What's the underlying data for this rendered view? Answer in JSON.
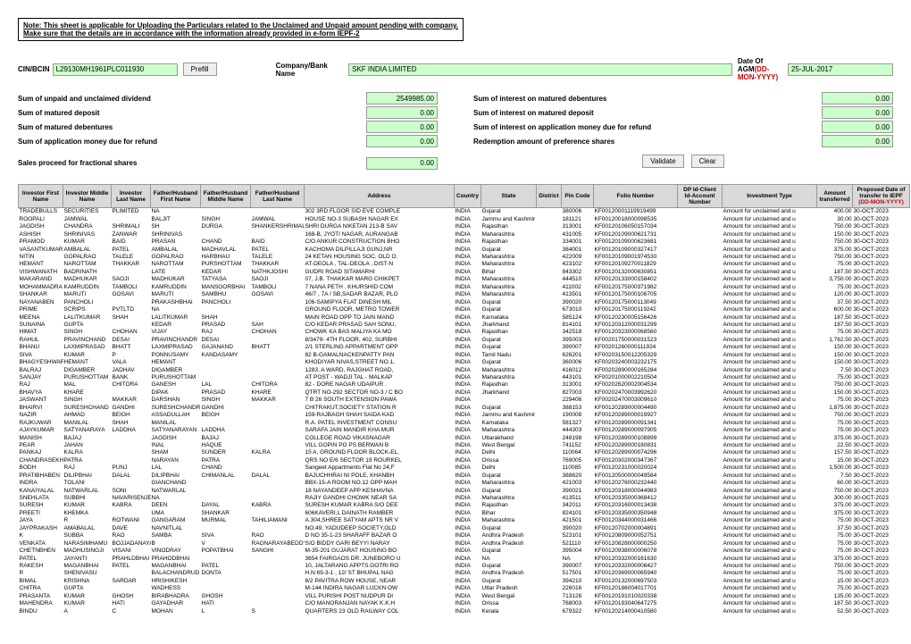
{
  "note": {
    "line1": "Note: This sheet is applicable for Uploading the Particulars related to the Unclaimed and Unpaid amount pending with company.",
    "line2": "Make sure that the details are in accordance with the information already provided in e-form IEPF-2"
  },
  "labels": {
    "cin": "CIN/BCIN",
    "prefill": "Prefill",
    "company": "Company/Bank Name",
    "agm": "Date Of AGM(DD-MON-YYYY)",
    "sum_dividend": "Sum of unpaid and unclaimed dividend",
    "sum_interest_debentures": "Sum of interest on matured debentures",
    "sum_matured_deposit": "Sum of matured deposit",
    "sum_interest_deposit": "Sum of interest on matured deposit",
    "sum_matured_debentures": "Sum of matured debentures",
    "sum_interest_refund": "Sum of interest on application money due for refund",
    "sum_refund": "Sum of application money due for refund",
    "redemption": "Redemption amount of preference shares",
    "sales_proceed": "Sales proceed for fractional shares",
    "validate": "Validate",
    "clear": "Clear"
  },
  "values": {
    "cin": "L29130MH1961PLC011930",
    "company": "SKF INDIA LIMITED",
    "agm": "25-JUL-2017",
    "sum_dividend": "2549985.00",
    "sum_interest_debentures": "0.00",
    "sum_matured_deposit": "0.00",
    "sum_interest_deposit": "0.00",
    "sum_matured_debentures": "0.00",
    "sum_interest_refund": "0.00",
    "sum_refund": "0.00",
    "redemption": "0.00",
    "sales_proceed": "0.00"
  },
  "columns": [
    "Investor First Name",
    "Investor Middle Name",
    "Investor Last Name",
    "Father/Husband First Name",
    "Father/Husband Middle Name",
    "Father/Husband Last Name",
    "Address",
    "Country",
    "State",
    "District",
    "Pin Code",
    "Folio Number",
    "DP Id-Client Id-Account Number",
    "Investment Type",
    "Amount transferred",
    "Proposed Date of transfer to IEPF (DD-MON-YYYY)"
  ],
  "colWidths": [
    "50px",
    "54px",
    "44px",
    "56px",
    "56px",
    "60px",
    "168px",
    "30px",
    "62px",
    "28px",
    "36px",
    "94px",
    "50px",
    "106px",
    "40px",
    "64px"
  ],
  "rows": [
    [
      "TRADEBULLS",
      "SECURITIES",
      "PLIMITED",
      "NA",
      "",
      "",
      "302 3RD FLOOR SID EVE COMPLE",
      "INDIA",
      "Gujarat",
      "",
      "380006",
      "KF00120001119919499",
      "",
      "Amount for unclaimed and u",
      "400.00",
      "30-OCT-2023"
    ],
    [
      "ROOPALI",
      "JAMWAL",
      "",
      "BALJIT",
      "SINGH",
      "JAMWAL",
      "HOUSE NO-3 SUBASH NAGAR EX",
      "INDIA",
      "Jammu and Kashmir",
      "",
      "181121",
      "KF00120018000098535",
      "",
      "Amount for unclaimed and u",
      "30.00",
      "30-OCT-2023"
    ],
    [
      "JAGDISH",
      "CHANDRA",
      "SHRIMALI",
      "SH",
      "DURGA",
      "SHANKERSHRIMALI",
      "SHRI DURGA NIKETAN 213-B SAV",
      "INDIA",
      "Rajasthan",
      "",
      "313001",
      "KF00120106050157034",
      "",
      "Amount for unclaimed and u",
      "750.00",
      "30-OCT-2023"
    ],
    [
      "ASHISH",
      "SHRINIVAS",
      "ZANWAR",
      "SHRINIVAS",
      "",
      "",
      "168-B, JYOTI NAGAR, AURANGAB",
      "INDIA",
      "Maharashtra",
      "",
      "431005",
      "KF00120109000621731",
      "",
      "Amount for unclaimed and u",
      "150.00",
      "30-OCT-2023"
    ],
    [
      "PRAMOD",
      "KUMAR",
      "BAID",
      "PRASAN",
      "CHAND",
      "BAID",
      "C/O ANKUR CONSTRUCTION BHO",
      "INDIA",
      "Rajasthan",
      "",
      "334001",
      "KF00120109000623681",
      "",
      "Amount for unclaimed and u",
      "750.00",
      "30-OCT-2023"
    ],
    [
      "VASANTKUMAR",
      "AMBALAL",
      "PATEL",
      "AMBALAL",
      "MADHAVLAL",
      "PATEL",
      "KACHOMA DILPILLAJI GUNJ,NR",
      "INDIA",
      "Gujarat",
      "",
      "384001",
      "KF00120109000327417",
      "",
      "Amount for unclaimed and u",
      "375.00",
      "30-OCT-2023"
    ],
    [
      "NITIN",
      "GOPALRAO",
      "TALELE",
      "GOPALRAO",
      "HARBHAU",
      "TALELE",
      "24 KETAN HOUSING SOC. OLD O.",
      "INDIA",
      "Maharashtra",
      "",
      "422009",
      "KF00120109001974530",
      "",
      "Amount for unclaimed and u",
      "750.00",
      "30-OCT-2023"
    ],
    [
      "HEMANT",
      "NAROTTAM",
      "THAKKAR",
      "NAROTTAM",
      "PURSHOTTAM",
      "THAKKAR",
      "AT-DEOLA , TAL-DEOLA , DIST-N",
      "INDIA",
      "Maharashtra",
      "",
      "423102",
      "KF00120109270011829",
      "",
      "Amount for unclaimed and u",
      "75.00",
      "30-OCT-2023"
    ],
    [
      "VISHWANATH",
      "BADRINATH",
      "",
      "LATE",
      "KEDAR",
      "NATHKJOSHI",
      "GUDRI ROAD SITAMARHI",
      "INDIA",
      "Bihar",
      "",
      "843302",
      "KF00120132000630851",
      "",
      "Amount for unclaimed and u",
      "187.50",
      "30-OCT-2023"
    ],
    [
      "MAKARAND",
      "MADHUKAR",
      "SAOJI",
      "MADHUKAR",
      "TATYASA",
      "SAOJI",
      "07, J.B. THAKKAR MARG CHIKPET",
      "INDIA",
      "Maharashtra",
      "",
      "444510",
      "KF00120133000158402",
      "",
      "Amount for unclaimed and u",
      "3,750.00",
      "30-OCT-2023"
    ],
    [
      "MOHAMMADRA",
      "KAMRUDDIN",
      "TAMBOLI",
      "KAMRUDDIN",
      "MANSOORBHAI",
      "TAMBOLI",
      "7 NANA PETH . KHURSHID COM",
      "INDIA",
      "Maharashtra",
      "",
      "411002",
      "KF00120175000371982",
      "",
      "Amount for unclaimed and u",
      "75.00",
      "30-OCT-2023"
    ],
    [
      "SHANKAR",
      "MARUTI",
      "GOSAVI",
      "MARUTI",
      "SAMBHU",
      "GOSAVI",
      "46/7 , 7A / SB,SADAR BAZAR, PLO",
      "INDIA",
      "Maharashtra",
      "",
      "413501",
      "KF00120175000106705",
      "",
      "Amount for unclaimed and u",
      "120.00",
      "30-OCT-2023"
    ],
    [
      "NAYANABEN",
      "PANCHOLI",
      "",
      "PRAKASHBHAI",
      "PANCHOLI",
      "",
      "106-SAMIPYA FLAT DINESH MIL",
      "INDIA",
      "Gujarat",
      "",
      "390020",
      "KF00120175000113049",
      "",
      "Amount for unclaimed and u",
      "37.50",
      "30-OCT-2023"
    ],
    [
      "PRIME",
      "SCRIPS",
      "PVTLTD",
      "NA",
      "",
      "",
      "GROUND FLOOR, METRO TOWER",
      "INDIA",
      "Gujarat",
      "",
      "673010",
      "KF00120175000119242",
      "",
      "Amount for unclaimed and u",
      "600.00",
      "30-OCT-2023"
    ],
    [
      "MEENA",
      "LALITKUMAR",
      "SHAH",
      "LALITKUMAR",
      "SHAH",
      "",
      "MAIN ROAD OPP TO JAIN MAND",
      "INDIA",
      "Karnataka",
      "",
      "585124",
      "KF00120230005156426",
      "",
      "Amount for unclaimed and u",
      "187.50",
      "30-OCT-2023"
    ],
    [
      "SUNAINA",
      "GUPTA",
      "",
      "KEDAR",
      "PRASAD",
      "SAH",
      "C/O KEDAR PRASAD SAH SONU,",
      "INDIA",
      "Jharkhand",
      "",
      "814101",
      "KF00120312000031299",
      "",
      "Amount for unclaimed and u",
      "187.50",
      "30-OCT-2023"
    ],
    [
      "HIMAT",
      "SINGH",
      "CHOHAN",
      "VIJAY",
      "RAJ",
      "CHOHAN",
      "CHOWK KA BAS MALIYA KA MO",
      "INDIA",
      "Rajasthan",
      "",
      "342518",
      "KF00120323000068560",
      "",
      "Amount for unclaimed and u",
      "75.00",
      "30-OCT-2023"
    ],
    [
      "RAHUL",
      "PRAVINCHAND",
      "DESAI",
      "PRAVINCHANDR",
      "DESAI",
      "",
      "8/3479- 4TH FLOOR, 402, SURBHI",
      "INDIA",
      "Gujarat",
      "",
      "395003",
      "KF00201750000031523",
      "",
      "Amount for unclaimed and u",
      "1,762.50",
      "30-OCT-2023"
    ],
    [
      "BHANU",
      "LAXMIPRASAD",
      "BHATT",
      "LAXMIPRASAD",
      "GAJANAND",
      "BHATT",
      "2/1 STERLING APPARTMENT OPP",
      "INDIA",
      "Gujarat",
      "",
      "390007",
      "KF00201260000111924",
      "",
      "Amount for unclaimed and u",
      "150.00",
      "30-OCT-2023"
    ],
    [
      "SIVA",
      "KUMAR",
      "P",
      "PONNUSAMY",
      "KANDASAMY",
      "",
      "82 B-GAMALNACKENPATTY PAN",
      "INDIA",
      "Tamil Nadu",
      "",
      "626201",
      "KF00203150012205329",
      "",
      "Amount for unclaimed and u",
      "150.00",
      "30-OCT-2023"
    ],
    [
      "BHAGYESHWAR",
      "HEMANT",
      "VALA",
      "HEMANT",
      "",
      "",
      "KHODIYAR NIVAS,STREET NO.1,",
      "INDIA",
      "Gujarat",
      "",
      "360006",
      "KF00203240003232175",
      "",
      "Amount for unclaimed and u",
      "150.00",
      "30-OCT-2023"
    ],
    [
      "BALRAJ",
      "DIGAMBER",
      "JADHAV",
      "DIGAMBER",
      "",
      "",
      "1283, A WARD, RAJGHAT ROAD,",
      "INDIA",
      "Maharashtra",
      "",
      "416012",
      "KF00202890000165284",
      "",
      "Amount for unclaimed and u",
      "7.50",
      "30-OCT-2023"
    ],
    [
      "SANJAY",
      "PURUSHOTTAM",
      "BANK",
      "PURUSHOTTAM",
      "",
      "",
      "AT POST - WADJI TAL - MALKAP",
      "INDIA",
      "Maharashtra",
      "",
      "443101",
      "KF00201000002210504",
      "",
      "Amount for unclaimed and u",
      "75.00",
      "30-OCT-2023"
    ],
    [
      "RAJ",
      "MAL",
      "CHITORA",
      "GANESH",
      "LAL",
      "CHITORA",
      "82 - DORE NAGAR UDAIPUR .",
      "INDIA",
      "Rajasthan",
      "",
      "313001",
      "KF00202620002004534",
      "",
      "Amount for unclaimed and u",
      "750.00",
      "30-OCT-2023"
    ],
    [
      "BHAVYA",
      "KHARE",
      "",
      "DIPAK",
      "PRASAD",
      "KHARE",
      "QTRT NO-292 SECTOR NO-3 / C BO",
      "INDIA",
      "Jharkhand",
      "",
      "827003",
      "KF00202470003992620",
      "",
      "Amount for unclaimed and u",
      "150.00",
      "30-OCT-2023"
    ],
    [
      "JASWANT",
      "SINGH",
      "MAKKAR",
      "DARSHAN",
      "SINGH",
      "MAKKAR",
      "7 B 26 SOUTH EXTENSION PAWA",
      "INDIA",
      "",
      "",
      "229406",
      "KF00202470003009610",
      "",
      "Amount for unclaimed and u",
      "75.00",
      "30-OCT-2023"
    ],
    [
      "BHAIRVI",
      "SURESHCHAND",
      "GANDHI",
      "SURESHCHANDR",
      "GANDHI",
      "",
      "CHITRAKUT,SOCIETY STATION R",
      "INDIA",
      "Gujarat",
      "",
      "388153",
      "KF00120289000004490",
      "",
      "Amount for unclaimed and u",
      "1,875.00",
      "30-OCT-2023"
    ],
    [
      "NAZIR",
      "AHMAD",
      "BEIGH",
      "ASSADULLAH",
      "BEIGH",
      "",
      "159-RAJBAGH SHAH SAIDA KAD",
      "INDIA",
      "Jammu and Kashmir",
      "",
      "190008",
      "KF00120289000019927",
      "",
      "Amount for unclaimed and u",
      "750.00",
      "30-OCT-2023"
    ],
    [
      "RAJKUWAR",
      "MANILAL",
      "SHAH",
      "MANILAL",
      "",
      "",
      "R.A. PATEL INVESTMENT CONSU",
      "INDIA",
      "Karnataka",
      "",
      "581327",
      "KF00120289000091341",
      "",
      "Amount for unclaimed and u",
      "75.00",
      "30-OCT-2023"
    ],
    [
      "AJAYKUMAR",
      "SATYANARAYA",
      "LADDHA",
      "SATYANARAYAN",
      "LADDHA",
      "",
      "SARAFA JAIN MANDIR KHA MUR",
      "INDIA",
      "Maharashtra",
      "",
      "444303",
      "KF00120289000097905",
      "",
      "Amount for unclaimed and u",
      "75.00",
      "30-OCT-2023"
    ],
    [
      "MANISH",
      "BAJAJ",
      "",
      "JAGDISH",
      "BAJAJ",
      "",
      "COLLEGE ROAD VIKASNAGAR",
      "INDIA",
      "Uttarakhand",
      "",
      "248198",
      "KF00120289000108899",
      "",
      "Amount for unclaimed and u",
      "375.00",
      "30-OCT-2023"
    ],
    [
      "PEAR",
      "JAHAN",
      "",
      "INAL",
      "HAQUE",
      "",
      "VILL GOPIN PO PS BERWAN B",
      "INDIA",
      "West Bengal",
      "",
      "741152",
      "KF00120289000180831",
      "",
      "Amount for unclaimed and u",
      "22.50",
      "30-OCT-2023"
    ],
    [
      "PANKAJ",
      "KALRA",
      "",
      "SHAM",
      "SUNDER",
      "KALRA",
      "15 A, GROUND FLOOR BLOCK-EL,",
      "INDIA",
      "Delhi",
      "",
      "110064",
      "KF00120289000074296",
      "",
      "Amount for unclaimed and u",
      "157.50",
      "30-OCT-2023"
    ],
    [
      "CHANDRASEKH",
      "PATRA",
      "",
      "NARAYAN",
      "PATRA",
      "",
      "QRS NO E/6 SECTOR 19 ROURKEL",
      "INDIA",
      "Orissa",
      "",
      "769005",
      "KF00120302000347367",
      "",
      "Amount for unclaimed and u",
      "15.00",
      "30-OCT-2023"
    ],
    [
      "BODH",
      "RAJ",
      "PUNJ",
      "LAL",
      "CHAND",
      "",
      "Sangeet Appartments Flat No 24,F",
      "INDIA",
      "Delhi",
      "",
      "110085",
      "KF00120231000020024",
      "",
      "Amount for unclaimed and u",
      "1,500.00",
      "30-OCT-2023"
    ],
    [
      "PRATIBHABEN",
      "DILIPBHAI",
      "DALAL",
      "DILIPBHAI",
      "CHIMANLAL",
      "DALAL",
      "BAJUCHHRAI NI POLE, KHANBH",
      "INDIA",
      "Gujarat",
      "",
      "388620",
      "KF00120500000049584",
      "",
      "Amount for unclaimed and u",
      "7.50",
      "30-OCT-2023"
    ],
    [
      "INDRA",
      "TOLANI",
      "",
      "GIANCHAND",
      "",
      "",
      "BBX-15-A ROOM NO.12 OPP MAH",
      "INDIA",
      "Maharashtra",
      "",
      "421003",
      "KF00120276000232440",
      "",
      "Amount for unclaimed and u",
      "60.00",
      "30-OCT-2023"
    ],
    [
      "KANAIYALAL",
      "NATWARLAL",
      "SONI",
      "NATWARLAL",
      "",
      "",
      "18 NAYANDEEP APP KESHAVNA",
      "INDIA",
      "Gujarat",
      "",
      "390021",
      "KF00120318000044983",
      "",
      "Amount for unclaimed and u",
      "750.00",
      "30-OCT-2023"
    ],
    [
      "SNEHLATA",
      "SUBBHI",
      "NAVARISENJE",
      "NA",
      "",
      "",
      "RAJIY GANDHI CHOWK NEAR SA",
      "INDIA",
      "Maharashtra",
      "",
      "413511",
      "KF00120335000368412",
      "",
      "Amount for unclaimed and u",
      "300.00",
      "30-OCT-2023"
    ],
    [
      "SURESH",
      "KUMAR",
      "KABRA",
      "DEEN",
      "DAYAL",
      "KABRA",
      "SURESH KUMAR KABRA S/O DEE",
      "INDIA",
      "Rajasthan",
      "",
      "342011",
      "KF00120316000013438",
      "",
      "Amount for unclaimed and u",
      "375.00",
      "30-OCT-2023"
    ],
    [
      "PREETI",
      "KHEMKA",
      "",
      "UMA",
      "SHANKAR",
      "",
      "606KAVERI,L DAINATH RAMBER",
      "INDIA",
      "Bihar",
      "",
      "824101",
      "KF00120335000350948",
      "",
      "Amount for unclaimed and u",
      "375.00",
      "30-OCT-2023"
    ],
    [
      "JAYA",
      "R",
      "ROTWANI",
      "GANGARAM",
      "MURMAL",
      "TAHILIAMANI",
      "A.304,SHREE SATYAM APTS NR V",
      "INDIA",
      "Maharashtra",
      "",
      "421501",
      "KF00120344000031466",
      "",
      "Amount for unclaimed and u",
      "75.00",
      "30-OCT-2023"
    ],
    [
      "JAYPRAKASH",
      "AMABALAL",
      "DAVE",
      "NAVNITLAL",
      "",
      "",
      "NO.49, YADUDEEP SOCIETY,OLD",
      "INDIA",
      "Gujarat",
      "",
      "390020",
      "KF00120702000004891",
      "",
      "Amount for unclaimed and u",
      "37.50",
      "30-OCT-2023"
    ],
    [
      "K",
      "SUBBA",
      "RAO",
      "SAMBA",
      "SIVA",
      "RAO",
      "D NO 35-1-23 SHARAFF BAZAR O",
      "INDIA",
      "Andhra Pradesh",
      "",
      "523101",
      "KF00120809000052751",
      "",
      "Amount for unclaimed and u",
      "75.00",
      "30-OCT-2023"
    ],
    [
      "VENKATA",
      "NARASIMHAMU",
      "BOJJADANAYA",
      "B",
      "V",
      "RAONARAYABEDDY",
      "S/O BIDDY GARI BEYYI NARAY",
      "INDIA",
      "Andhra Pradesh",
      "",
      "521110",
      "KF00120828000000250",
      "",
      "Amount for unclaimed and u",
      "75.00",
      "30-OCT-2023"
    ],
    [
      "CHETNBHEN",
      "MADHUSINGJI",
      "VISANI",
      "VINODRAY",
      "POPATBHAI",
      "SANGHI",
      "M-35-201 GUJARAT HOUSING BO",
      "INDIA",
      "Gujarat",
      "",
      "395004",
      "KF00120938000006078",
      "",
      "Amount for unclaimed and u",
      "75.00",
      "30-OCT-2023"
    ],
    [
      "PATEL",
      "JAYANTI",
      "PRAHLDBHAI",
      "PRAHODBHAI",
      "",
      "",
      "3654 FAIRGAOS DR. JUNEBORO U",
      "INDIA",
      "NA",
      "",
      "NA",
      "KF00120332000161630",
      "",
      "Amount for unclaimed and u",
      "375.00",
      "30-OCT-2023"
    ],
    [
      "RAKESH",
      "MAGANBHAI",
      "PATEL",
      "MAGANBHAI",
      "PATEL",
      "",
      "10, JALTARANG APPTS.GOTRI RO",
      "INDIA",
      "Gujarat",
      "",
      "390007",
      "KF00120332000008427",
      "",
      "Amount for unclaimed and u",
      "750.00",
      "30-OCT-2023"
    ],
    [
      "R",
      "SHENIVASU",
      "",
      "BALACHANDRUD",
      "DONTA",
      "",
      "H.N:69-3-1 , 12/ ST BHUPAL NAG",
      "INDIA",
      "Andhra Pradesh",
      "",
      "517501",
      "KF00120369000065940",
      "",
      "Amount for unclaimed and u",
      "75.00",
      "30-OCT-2023"
    ],
    [
      "BIMAL",
      "KRISHNA",
      "SARDAR",
      "HRISHIKESH",
      "",
      "",
      "8/2 PAVITRA ROW HOUSE, NEAR",
      "INDIA",
      "Gujarat",
      "",
      "394210",
      "KF00120132000697503",
      "",
      "Amount for unclaimed and u",
      "15.00",
      "30-OCT-2023"
    ],
    [
      "CHITRA",
      "GUPTA",
      "",
      "WADHESS",
      "",
      "",
      "M-144 INDIRA NAGAR LUCKN OW",
      "INDIA",
      "Uttar Pradesh",
      "",
      "226016",
      "KF00120186004017701",
      "",
      "Amount for unclaimed and u",
      "75.00",
      "30-OCT-2023"
    ],
    [
      "PRASANTA",
      "KUMAR",
      "GHOSH",
      "BIRABHADRA",
      "GHOSH",
      "",
      "VILL PURISHI POST NUDPUR DI",
      "INDIA",
      "West Bengal",
      "",
      "713128",
      "KF00120191010020338",
      "",
      "Amount for unclaimed and u",
      "135.00",
      "30-OCT-2023"
    ],
    [
      "MAHENDRA",
      "KUMAR",
      "HATI",
      "GAYADHAR",
      "HATI",
      "",
      "C/O MANORANJAN NAYAK K.K.H",
      "INDIA",
      "Orissa",
      "",
      "768003",
      "KF00120193040647275",
      "",
      "Amount for unclaimed and u",
      "187.50",
      "30-OCT-2023"
    ],
    [
      "BINDU",
      "A",
      "C",
      "MOHAN",
      "L",
      "S",
      "QUARTERS 23 OLD RAILWAY COL",
      "INDIA",
      "Kerala",
      "",
      "679322",
      "KF00120214000410580",
      "",
      "Amount for unclaimed and u",
      "52.50",
      "30-OCT-2023"
    ]
  ]
}
